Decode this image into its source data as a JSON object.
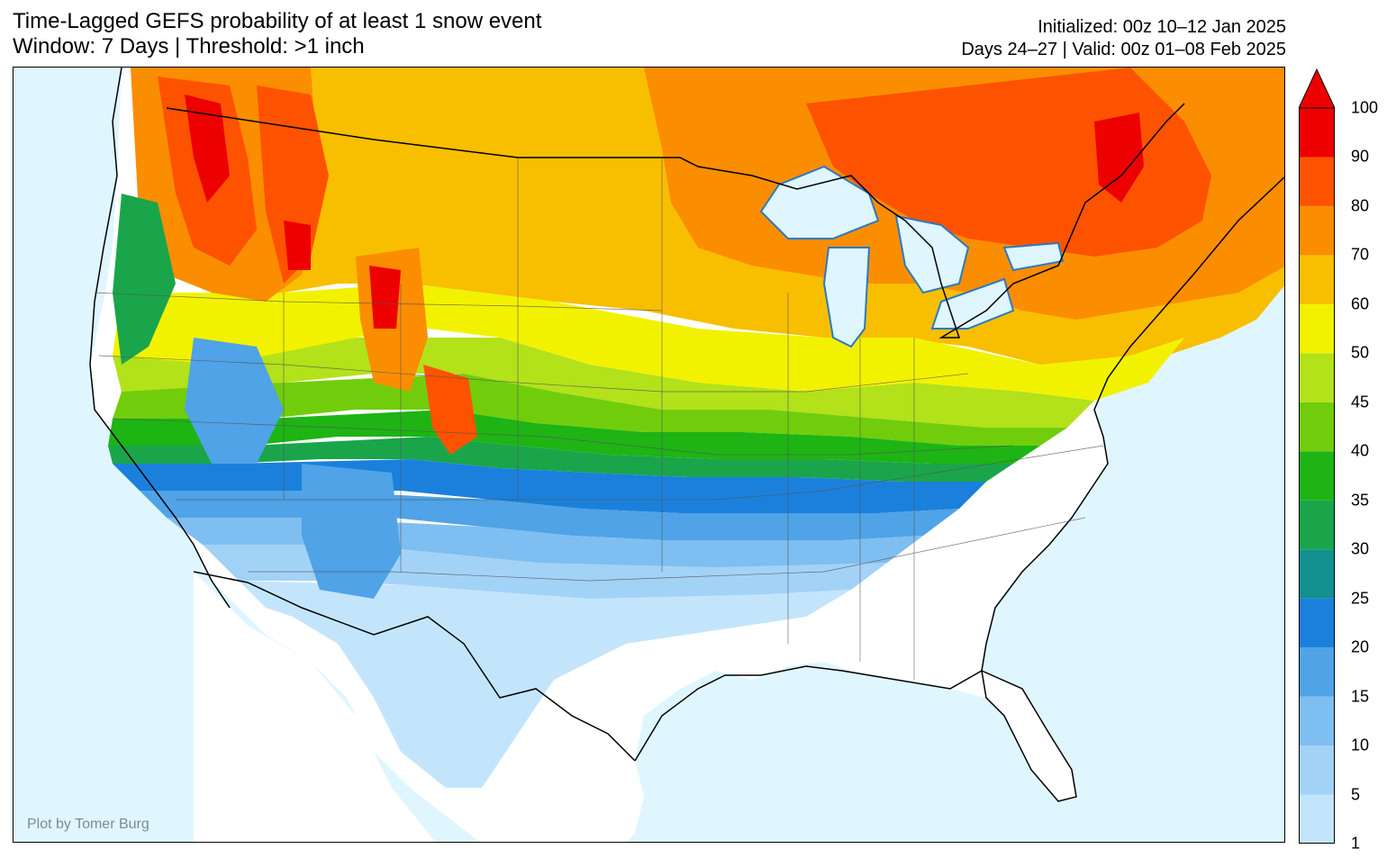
{
  "header": {
    "title_line1": "Time-Lagged GEFS probability of at least 1 snow event",
    "title_line2": "Window: 7 Days | Threshold: >1 inch",
    "init_line": "Initialized: 00z 10–12 Jan 2025",
    "valid_line": "Days 24–27 | Valid: 00z 01–08 Feb 2025"
  },
  "credit": "Plot by Tomer Burg",
  "colors": {
    "ocean": "#dff6ff",
    "land_zero": "#ffffff"
  },
  "colorbar": {
    "ticks": [
      "1",
      "5",
      "10",
      "15",
      "20",
      "25",
      "30",
      "35",
      "40",
      "45",
      "50",
      "60",
      "70",
      "80",
      "90",
      "100"
    ],
    "colors": [
      "#c3e5fb",
      "#a3d2f7",
      "#7ebef0",
      "#4fa3e6",
      "#1b80dc",
      "#139090",
      "#1aa54b",
      "#1db414",
      "#71cd0c",
      "#b3e11a",
      "#f2f200",
      "#f8be00",
      "#fb8d00",
      "#fd5300",
      "#ed0000"
    ],
    "extend_max_color": "#ed0000"
  }
}
